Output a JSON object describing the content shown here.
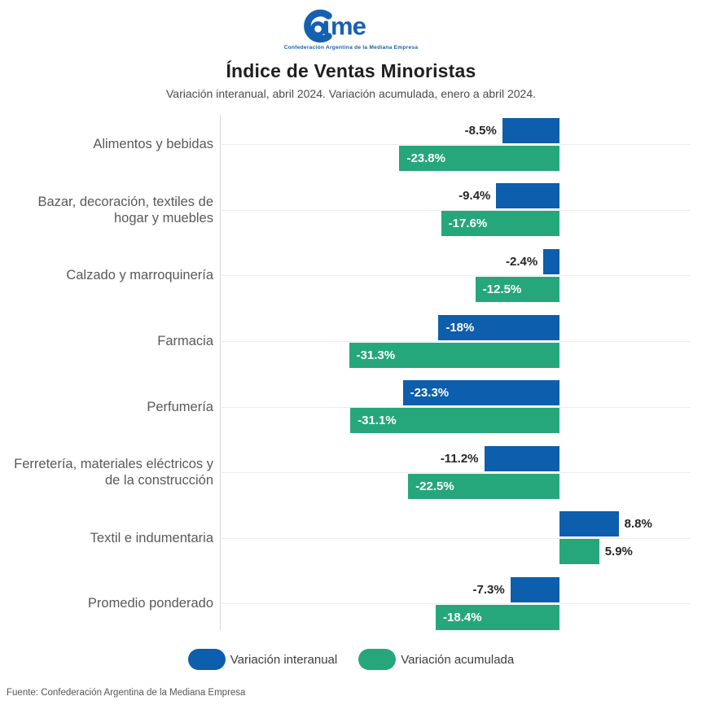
{
  "colors": {
    "brand_blue": "#1660b2",
    "bar_blue": "#0d5eac",
    "bar_green": "#26a77b"
  },
  "header": {
    "logo_name": "CAME",
    "logo_tagline": "Confederación Argentina de la Mediana Empresa",
    "title": "Índice de Ventas Minoristas",
    "subtitle": "Variación interanual, abril 2024. Variación acumulada, enero a abril 2024."
  },
  "chart_data": {
    "type": "bar",
    "orientation": "horizontal",
    "title": "Índice de Ventas Minoristas",
    "subtitle": "Variación interanual, abril 2024. Variación acumulada, enero a abril 2024.",
    "categories": [
      "Alimentos y bebidas",
      "Bazar, decoración, textiles de hogar y muebles",
      "Calzado y marroquinería",
      "Farmacia",
      "Perfumería",
      "Ferretería, materiales eléctricos y de la construcción",
      "Textil e indumentaria",
      "Promedio ponderado"
    ],
    "series": [
      {
        "name": "Variación interanual",
        "color": "#0d5eac",
        "values": [
          -8.5,
          -9.4,
          -2.4,
          -18,
          -23.3,
          -11.2,
          8.8,
          -7.3
        ],
        "labels": [
          "-8.5%",
          "-9.4%",
          "-2.4%",
          "-18%",
          "-23.3%",
          "-11.2%",
          "8.8%",
          "-7.3%"
        ]
      },
      {
        "name": "Variación acumulada",
        "color": "#26a77b",
        "values": [
          -23.8,
          -17.6,
          -12.5,
          -31.3,
          -31.1,
          -22.5,
          5.9,
          -18.4
        ],
        "labels": [
          "-23.8%",
          "-17.6%",
          "-12.5%",
          "-31.3%",
          "-31.1%",
          "-22.5%",
          "5.9%",
          "-18.4%"
        ]
      }
    ],
    "xlim": [
      -50.5,
      19.5
    ],
    "grid": "per-category horizontal gridlines",
    "legend_position": "bottom"
  },
  "footer": {
    "source": "Fuente: Confederación Argentina de la Mediana Empresa"
  }
}
